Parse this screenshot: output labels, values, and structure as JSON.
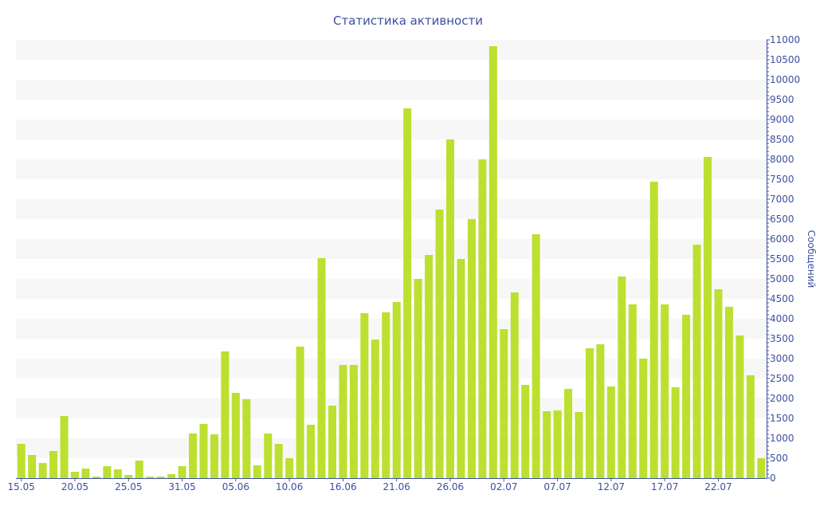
{
  "chart_data": {
    "type": "bar",
    "title": "Статистика активности",
    "xlabel": "",
    "ylabel": "Сообщений",
    "ylim": [
      0,
      11000
    ],
    "y_ticks": [
      0,
      500,
      1000,
      1500,
      2000,
      2500,
      3000,
      3500,
      4000,
      4500,
      5000,
      5500,
      6000,
      6500,
      7000,
      7500,
      8000,
      8500,
      9000,
      9500,
      10000,
      10500,
      11000
    ],
    "y_axis_position": "right",
    "grid": "alternating horizontal bands",
    "x_tick_labels": [
      {
        "bar": 0,
        "label": "15.05"
      },
      {
        "bar": 5,
        "label": "20.05"
      },
      {
        "bar": 10,
        "label": "25.05"
      },
      {
        "bar": 15,
        "label": "31.05"
      },
      {
        "bar": 20,
        "label": "05.06"
      },
      {
        "bar": 25,
        "label": "10.06"
      },
      {
        "bar": 30,
        "label": "16.06"
      },
      {
        "bar": 35,
        "label": "21.06"
      },
      {
        "bar": 40,
        "label": "26.06"
      },
      {
        "bar": 45,
        "label": "02.07"
      },
      {
        "bar": 50,
        "label": "07.07"
      },
      {
        "bar": 55,
        "label": "12.07"
      },
      {
        "bar": 60,
        "label": "17.07"
      },
      {
        "bar": 65,
        "label": "22.07"
      }
    ],
    "values": [
      860,
      580,
      380,
      680,
      1560,
      160,
      240,
      40,
      300,
      220,
      80,
      440,
      40,
      40,
      100,
      300,
      1120,
      1360,
      1100,
      3180,
      2140,
      1980,
      320,
      1120,
      860,
      500,
      3300,
      1340,
      5520,
      1820,
      2840,
      2840,
      4140,
      3480,
      4160,
      4420,
      9280,
      5000,
      5600,
      6740,
      8500,
      5500,
      6500,
      8000,
      10840,
      3740,
      4660,
      2340,
      6120,
      1680,
      1700,
      2240,
      1660,
      3260,
      3360,
      2300,
      5060,
      4360,
      3000,
      7440,
      4360,
      2280,
      4100,
      5860,
      8060,
      4740,
      4300,
      3580,
      2580,
      500
    ],
    "colors": {
      "bar": "#bce02f",
      "axis": "#3d4fa0",
      "band": "#f7f7f7"
    }
  }
}
